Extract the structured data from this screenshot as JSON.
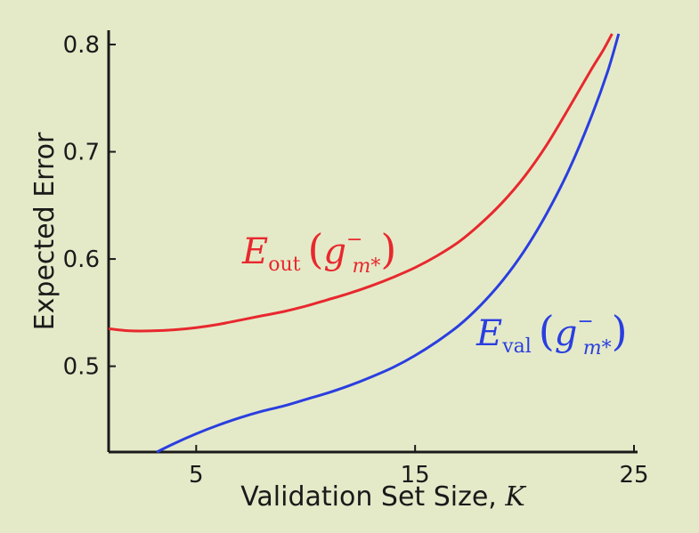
{
  "chart_data": {
    "type": "line",
    "title": "",
    "xlabel": "Validation Set Size, ",
    "xlabel_var": "K",
    "ylabel": "Expected Error",
    "xlim": [
      1,
      25
    ],
    "ylim": [
      0.42,
      0.81
    ],
    "xticks": [
      5,
      15,
      25
    ],
    "yticks": [
      0.5,
      0.6,
      0.7,
      0.8
    ],
    "xtick_labels": [
      "5",
      "15",
      "25"
    ],
    "ytick_labels": [
      "0.5",
      "0.6",
      "0.7",
      "0.8"
    ],
    "grid": false,
    "series": [
      {
        "key": "eout",
        "label_main": "E",
        "label_sub": "out",
        "label_arg": "g",
        "label_arg_sub": "m*",
        "label_arg_sup": "−",
        "color": "#e8282e",
        "x": [
          1,
          2,
          3,
          4,
          5,
          6,
          7,
          8,
          9,
          10,
          11,
          12,
          13,
          14,
          15,
          16,
          17,
          18,
          19,
          20,
          21,
          22,
          23,
          23.6,
          24
        ],
        "y": [
          0.535,
          0.533,
          0.533,
          0.534,
          0.536,
          0.539,
          0.543,
          0.547,
          0.551,
          0.556,
          0.562,
          0.568,
          0.575,
          0.583,
          0.592,
          0.603,
          0.616,
          0.633,
          0.653,
          0.677,
          0.706,
          0.74,
          0.775,
          0.795,
          0.81
        ]
      },
      {
        "key": "eval",
        "label_main": "E",
        "label_sub": "val",
        "label_arg": "g",
        "label_arg_sub": "m*",
        "label_arg_sup": "−",
        "color": "#2a3ee0",
        "x": [
          3.2,
          4,
          5,
          6,
          7,
          8,
          9,
          10,
          11,
          12,
          13,
          14,
          15,
          16,
          17,
          18,
          19,
          20,
          21,
          22,
          23,
          23.8,
          24.3
        ],
        "y": [
          0.42,
          0.428,
          0.437,
          0.445,
          0.452,
          0.458,
          0.463,
          0.469,
          0.475,
          0.482,
          0.49,
          0.499,
          0.51,
          0.523,
          0.538,
          0.557,
          0.58,
          0.608,
          0.642,
          0.682,
          0.73,
          0.775,
          0.81
        ]
      }
    ]
  }
}
